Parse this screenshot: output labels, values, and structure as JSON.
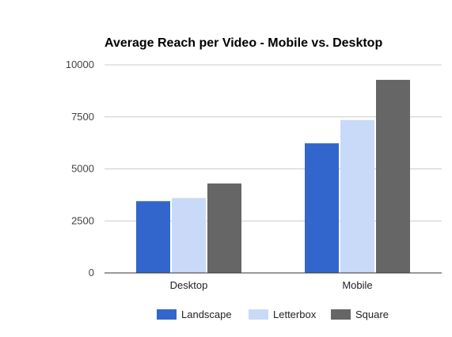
{
  "chart_data": {
    "type": "bar",
    "title": "Average Reach per Video - Mobile vs. Desktop",
    "xlabel": "",
    "ylabel": "",
    "categories": [
      "Desktop",
      "Mobile"
    ],
    "series": [
      {
        "name": "Landscape",
        "color": "#3366cc",
        "values": [
          3450,
          6230
        ]
      },
      {
        "name": "Letterbox",
        "color": "#c9daf8",
        "values": [
          3600,
          7350
        ]
      },
      {
        "name": "Square",
        "color": "#666666",
        "values": [
          4300,
          9280
        ]
      }
    ],
    "ylim": [
      0,
      10000
    ],
    "yticks": [
      "0",
      "2500",
      "5000",
      "7500",
      "10000"
    ],
    "ytick_values": [
      0,
      2500,
      5000,
      7500,
      10000
    ],
    "grid": true,
    "legend_position": "bottom"
  }
}
